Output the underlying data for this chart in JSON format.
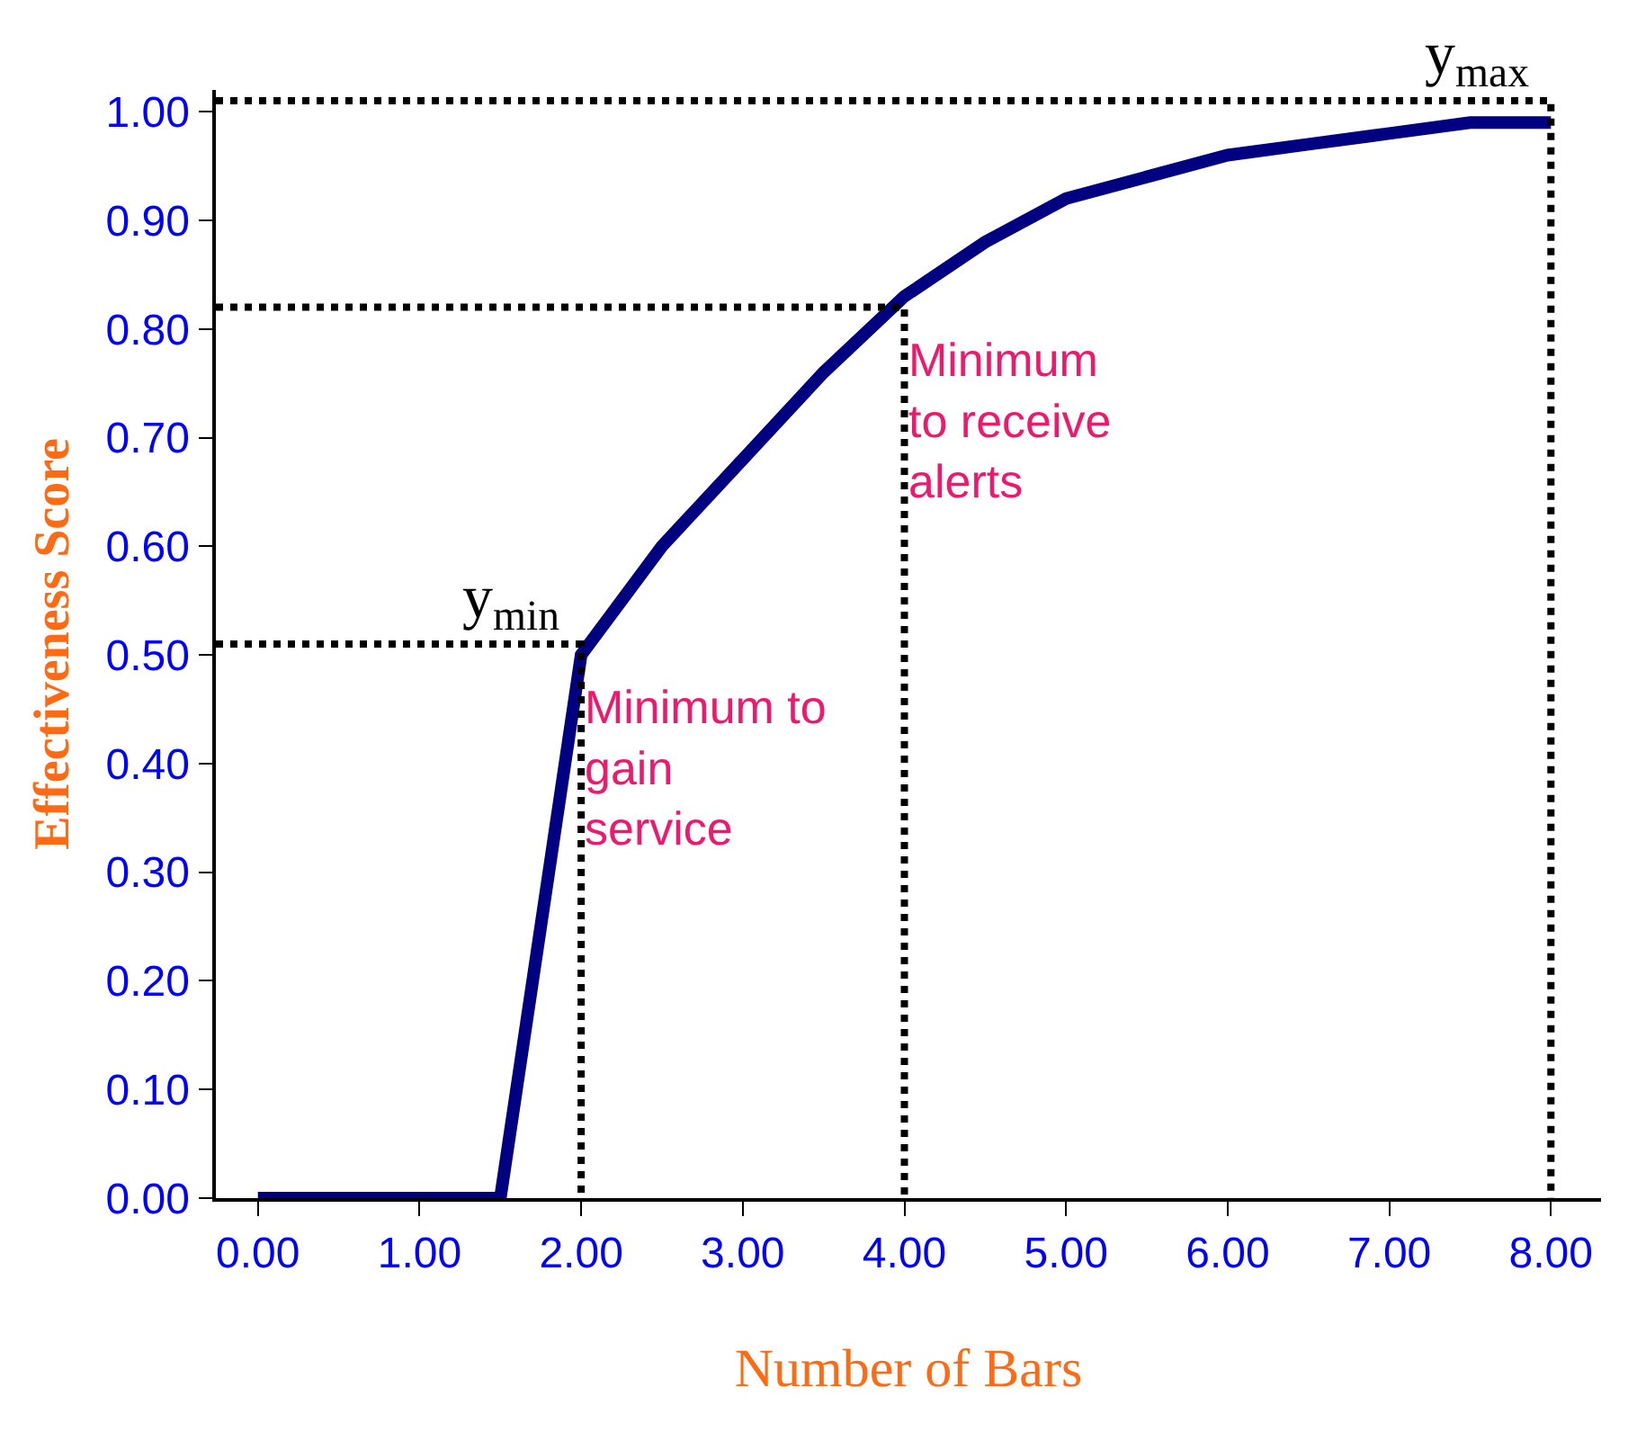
{
  "chart_data": {
    "type": "line",
    "xlabel": "Number of Bars",
    "ylabel": "Effectiveness Score",
    "xlim": [
      -0.26,
      8.31
    ],
    "ylim": [
      0,
      1.02
    ],
    "xticks": [
      {
        "value": 0,
        "label": "0.00"
      },
      {
        "value": 1,
        "label": "1.00"
      },
      {
        "value": 2,
        "label": "2.00"
      },
      {
        "value": 3,
        "label": "3.00"
      },
      {
        "value": 4,
        "label": "4.00"
      },
      {
        "value": 5,
        "label": "5.00"
      },
      {
        "value": 6,
        "label": "6.00"
      },
      {
        "value": 7,
        "label": "7.00"
      },
      {
        "value": 8,
        "label": "8.00"
      }
    ],
    "yticks": [
      {
        "value": 0,
        "label": "0.00"
      },
      {
        "value": 0.1,
        "label": "0.10"
      },
      {
        "value": 0.2,
        "label": "0.20"
      },
      {
        "value": 0.3,
        "label": "0.30"
      },
      {
        "value": 0.4,
        "label": "0.40"
      },
      {
        "value": 0.5,
        "label": "0.50"
      },
      {
        "value": 0.6,
        "label": "0.60"
      },
      {
        "value": 0.7,
        "label": "0.70"
      },
      {
        "value": 0.8,
        "label": "0.80"
      },
      {
        "value": 0.9,
        "label": "0.90"
      },
      {
        "value": 1.0,
        "label": "1.00"
      }
    ],
    "series": [
      {
        "color": "#000080",
        "x": [
          0,
          0.5,
          1,
          1.5,
          2,
          2.5,
          3,
          3.5,
          4,
          4.5,
          5,
          5.5,
          6,
          6.5,
          7,
          7.5,
          8
        ],
        "values": [
          0,
          0,
          0,
          0,
          0.5,
          0.6,
          0.68,
          0.76,
          0.83,
          0.88,
          0.92,
          0.94,
          0.96,
          0.97,
          0.98,
          0.99,
          0.99
        ]
      },
      {
        "color": "#000000",
        "line_style": "dotted",
        "x": [
          -0.26,
          2,
          2
        ],
        "values": [
          0.51,
          0.51,
          0
        ]
      },
      {
        "color": "#000000",
        "line_style": "dotted",
        "x": [
          -0.26,
          4,
          4
        ],
        "values": [
          0.82,
          0.82,
          0
        ]
      },
      {
        "color": "#000000",
        "line_style": "dotted",
        "x": [
          -0.26,
          8,
          8
        ],
        "values": [
          1.01,
          1.01,
          0
        ]
      }
    ],
    "annotations": [
      {
        "text": "Minimum to\ngain\nservice",
        "x": 2,
        "y": 0.48
      },
      {
        "text": "Minimum\nto receive\nalerts",
        "x": 4,
        "y": 0.8
      },
      {
        "text": "y$_{min}$",
        "x": 2,
        "y": 0.51
      },
      {
        "text": "y$_{max}$",
        "x": 8,
        "y": 1.01
      }
    ]
  }
}
